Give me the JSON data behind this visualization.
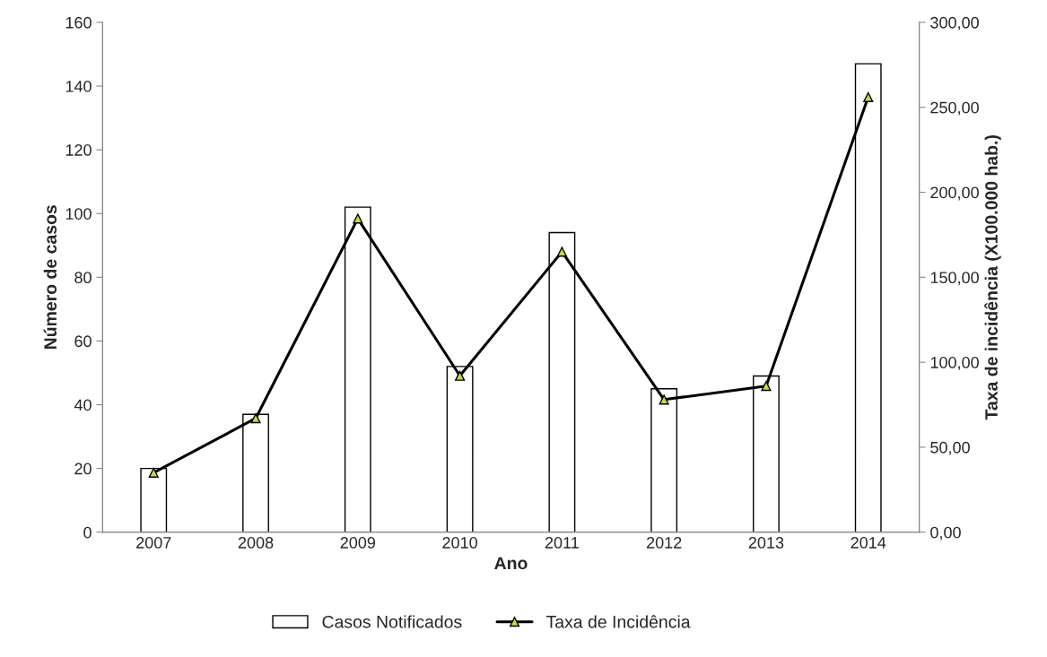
{
  "chart_data": {
    "type": "bar",
    "xlabel": "Ano",
    "ylabel": "Número de casos",
    "y2label": "Taxa de incidência (X100.000 hab.)",
    "categories": [
      "2007",
      "2008",
      "2009",
      "2010",
      "2011",
      "2012",
      "2013",
      "2014"
    ],
    "series": [
      {
        "name": "Casos Notificados",
        "color": "#ffffff",
        "values": [
          20,
          37,
          102,
          52,
          94,
          45,
          49,
          147
        ]
      },
      {
        "name": "Taxa de Incidência",
        "type": "line",
        "axis": "y2",
        "color": "#000000",
        "marker": "triangle",
        "values": [
          35,
          67,
          184.5,
          92,
          165,
          78,
          86,
          256
        ]
      }
    ],
    "ylim": [
      0,
      160
    ],
    "yticks": [
      0,
      20,
      40,
      60,
      80,
      100,
      120,
      140,
      160
    ],
    "y2lim": [
      0,
      300
    ],
    "y2ticks": [
      {
        "value": 0,
        "label": "0,00"
      },
      {
        "value": 50,
        "label": "50,00"
      },
      {
        "value": 100,
        "label": "100,00"
      },
      {
        "value": 150,
        "label": "150,00"
      },
      {
        "value": 200,
        "label": "200,00"
      },
      {
        "value": 250,
        "label": "250,00"
      },
      {
        "value": 300,
        "label": "300,00"
      }
    ],
    "grid": false,
    "legend": "bottom"
  }
}
